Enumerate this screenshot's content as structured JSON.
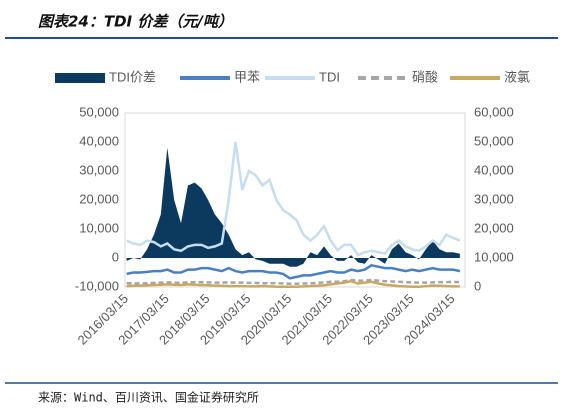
{
  "chart_data": {
    "type": "line",
    "title": "图表24：TDI 价差（元/吨）",
    "source": "来源：Wind、百川资讯、国金证券研究所",
    "x": [
      "2016/03/15",
      "2016/05/15",
      "2016/07/15",
      "2016/09/15",
      "2016/11/15",
      "2017/01/15",
      "2017/03/15",
      "2017/05/15",
      "2017/07/15",
      "2017/09/15",
      "2017/11/15",
      "2018/01/15",
      "2018/03/15",
      "2018/05/15",
      "2018/07/15",
      "2018/09/15",
      "2018/11/15",
      "2019/01/15",
      "2019/03/15",
      "2019/05/15",
      "2019/07/15",
      "2019/09/15",
      "2019/11/15",
      "2020/01/15",
      "2020/03/15",
      "2020/05/15",
      "2020/07/15",
      "2020/09/15",
      "2020/11/15",
      "2021/01/15",
      "2021/03/15",
      "2021/05/15",
      "2021/07/15",
      "2021/09/15",
      "2021/11/15",
      "2022/01/15",
      "2022/03/15",
      "2022/05/15",
      "2022/07/15",
      "2022/09/15",
      "2022/11/15",
      "2023/01/15",
      "2023/03/15",
      "2023/05/15",
      "2023/07/15",
      "2023/09/15",
      "2023/11/15",
      "2024/01/15",
      "2024/03/15",
      "2024/05/15"
    ],
    "xlim": [
      "2016/03/01",
      "2024/06/30"
    ],
    "xticks": [
      "2016/03/15",
      "2017/03/15",
      "2018/03/15",
      "2019/03/15",
      "2020/03/15",
      "2021/03/15",
      "2022/03/15",
      "2023/03/15",
      "2024/03/15"
    ],
    "ylim": [
      -10000,
      50000
    ],
    "yticks": [
      {
        "value": 50000,
        "label": "50,000"
      },
      {
        "value": 40000,
        "label": "40,000"
      },
      {
        "value": 30000,
        "label": "30,000"
      },
      {
        "value": 20000,
        "label": "20,000"
      },
      {
        "value": 10000,
        "label": "10,000"
      },
      0,
      {
        "value": -10000,
        "label": "-10,000"
      }
    ],
    "y2lim": [
      0,
      60000
    ],
    "y2ticks": [
      {
        "value": 60000,
        "label": "60,000"
      },
      {
        "value": 50000,
        "label": "50,000"
      },
      {
        "value": 40000,
        "label": "40,000"
      },
      {
        "value": 30000,
        "label": "30,000"
      },
      {
        "value": 20000,
        "label": "20,000"
      },
      {
        "value": 10000,
        "label": "10,000"
      },
      0
    ],
    "series": [
      {
        "name": "TDI价差",
        "type": "area",
        "color": "#0c3a5e",
        "values": [
          -1000,
          0,
          -500,
          3000,
          8000,
          15000,
          38000,
          20000,
          12000,
          25000,
          26000,
          24000,
          20000,
          15000,
          12000,
          8000,
          3000,
          1000,
          2000,
          -500,
          -1000,
          -2000,
          -2000,
          -2000,
          -3000,
          -3000,
          -2000,
          2000,
          1000,
          4000,
          1000,
          -1000,
          -1000,
          1000,
          -1500,
          -2000,
          1000,
          -500,
          -2000,
          3000,
          5000,
          2000,
          1000,
          -500,
          3000,
          6000,
          3000,
          2000,
          2000,
          1500
        ]
      },
      {
        "name": "甲苯",
        "axis": "y2",
        "color": "#4a7fc1",
        "values": [
          4500,
          5000,
          5000,
          5200,
          5500,
          5500,
          6000,
          5000,
          5000,
          6000,
          6000,
          6500,
          6500,
          6000,
          5500,
          6500,
          5500,
          5000,
          5500,
          5500,
          5500,
          5000,
          5000,
          4500,
          3000,
          3500,
          4000,
          4000,
          4500,
          5000,
          5500,
          5000,
          5000,
          6000,
          5500,
          6000,
          7500,
          7000,
          6500,
          6500,
          6000,
          5500,
          6000,
          5500,
          6000,
          6500,
          6000,
          6000,
          6000,
          5500
        ]
      },
      {
        "name": "TDI",
        "axis": "y2",
        "color": "#c6dcef",
        "values": [
          16000,
          15000,
          14500,
          16000,
          15500,
          14000,
          15000,
          13000,
          12500,
          14000,
          14500,
          14500,
          13500,
          14000,
          15000,
          30000,
          50000,
          33500,
          40000,
          38500,
          35000,
          37000,
          30000,
          26500,
          25000,
          23000,
          18000,
          16000,
          18000,
          21000,
          16000,
          12700,
          14500,
          14500,
          11000,
          12000,
          12500,
          12000,
          11500,
          14500,
          16000,
          14000,
          13000,
          12500,
          14000,
          16000,
          14500,
          18000,
          17000,
          16000
        ]
      },
      {
        "name": "硝酸",
        "axis": "y2",
        "color": "#a6a6a6",
        "dash": true,
        "values": [
          1300,
          1300,
          1200,
          1300,
          1400,
          1500,
          1600,
          1500,
          1400,
          1600,
          1700,
          1700,
          1600,
          1500,
          1500,
          1600,
          1500,
          1500,
          1400,
          1400,
          1300,
          1300,
          1300,
          1200,
          1100,
          1100,
          1200,
          1300,
          1400,
          1600,
          1800,
          1800,
          2000,
          2400,
          2200,
          2200,
          2400,
          2200,
          2000,
          1900,
          1800,
          1700,
          1600,
          1500,
          1500,
          1600,
          1700,
          1700,
          1800,
          1700
        ]
      },
      {
        "name": "液氯",
        "axis": "y2",
        "color": "#c9a861",
        "values": [
          300,
          400,
          500,
          600,
          700,
          800,
          900,
          800,
          700,
          900,
          800,
          700,
          600,
          500,
          400,
          300,
          300,
          300,
          200,
          200,
          300,
          200,
          100,
          100,
          100,
          100,
          200,
          300,
          400,
          600,
          900,
          1200,
          1500,
          2000,
          1200,
          1500,
          1800,
          1200,
          800,
          600,
          300,
          200,
          100,
          100,
          300,
          500,
          400,
          300,
          200,
          200
        ]
      }
    ]
  }
}
